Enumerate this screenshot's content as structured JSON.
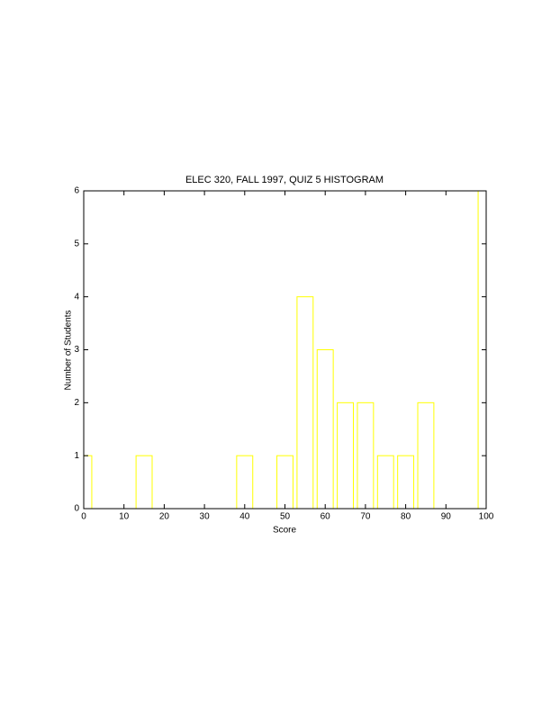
{
  "chart_data": {
    "type": "bar",
    "title": "ELEC 320, FALL 1997, QUIZ 5 HISTOGRAM",
    "x_label": "Score",
    "y_label": "Number of Students",
    "x": [
      0,
      5,
      10,
      15,
      20,
      25,
      30,
      35,
      40,
      45,
      50,
      55,
      60,
      65,
      70,
      75,
      80,
      85,
      90,
      95,
      100
    ],
    "values": [
      1,
      0,
      0,
      1,
      0,
      0,
      0,
      0,
      1,
      0,
      1,
      4,
      3,
      2,
      2,
      1,
      1,
      2,
      0,
      0,
      6
    ],
    "color": "#ffff00",
    "xlim": [
      0,
      100
    ],
    "xticks": [
      0,
      10,
      20,
      30,
      40,
      50,
      60,
      70,
      80,
      90,
      100
    ],
    "ylim": [
      0,
      6
    ],
    "yticks": [
      0,
      1,
      2,
      3,
      4,
      5,
      6
    ],
    "grid": false
  }
}
